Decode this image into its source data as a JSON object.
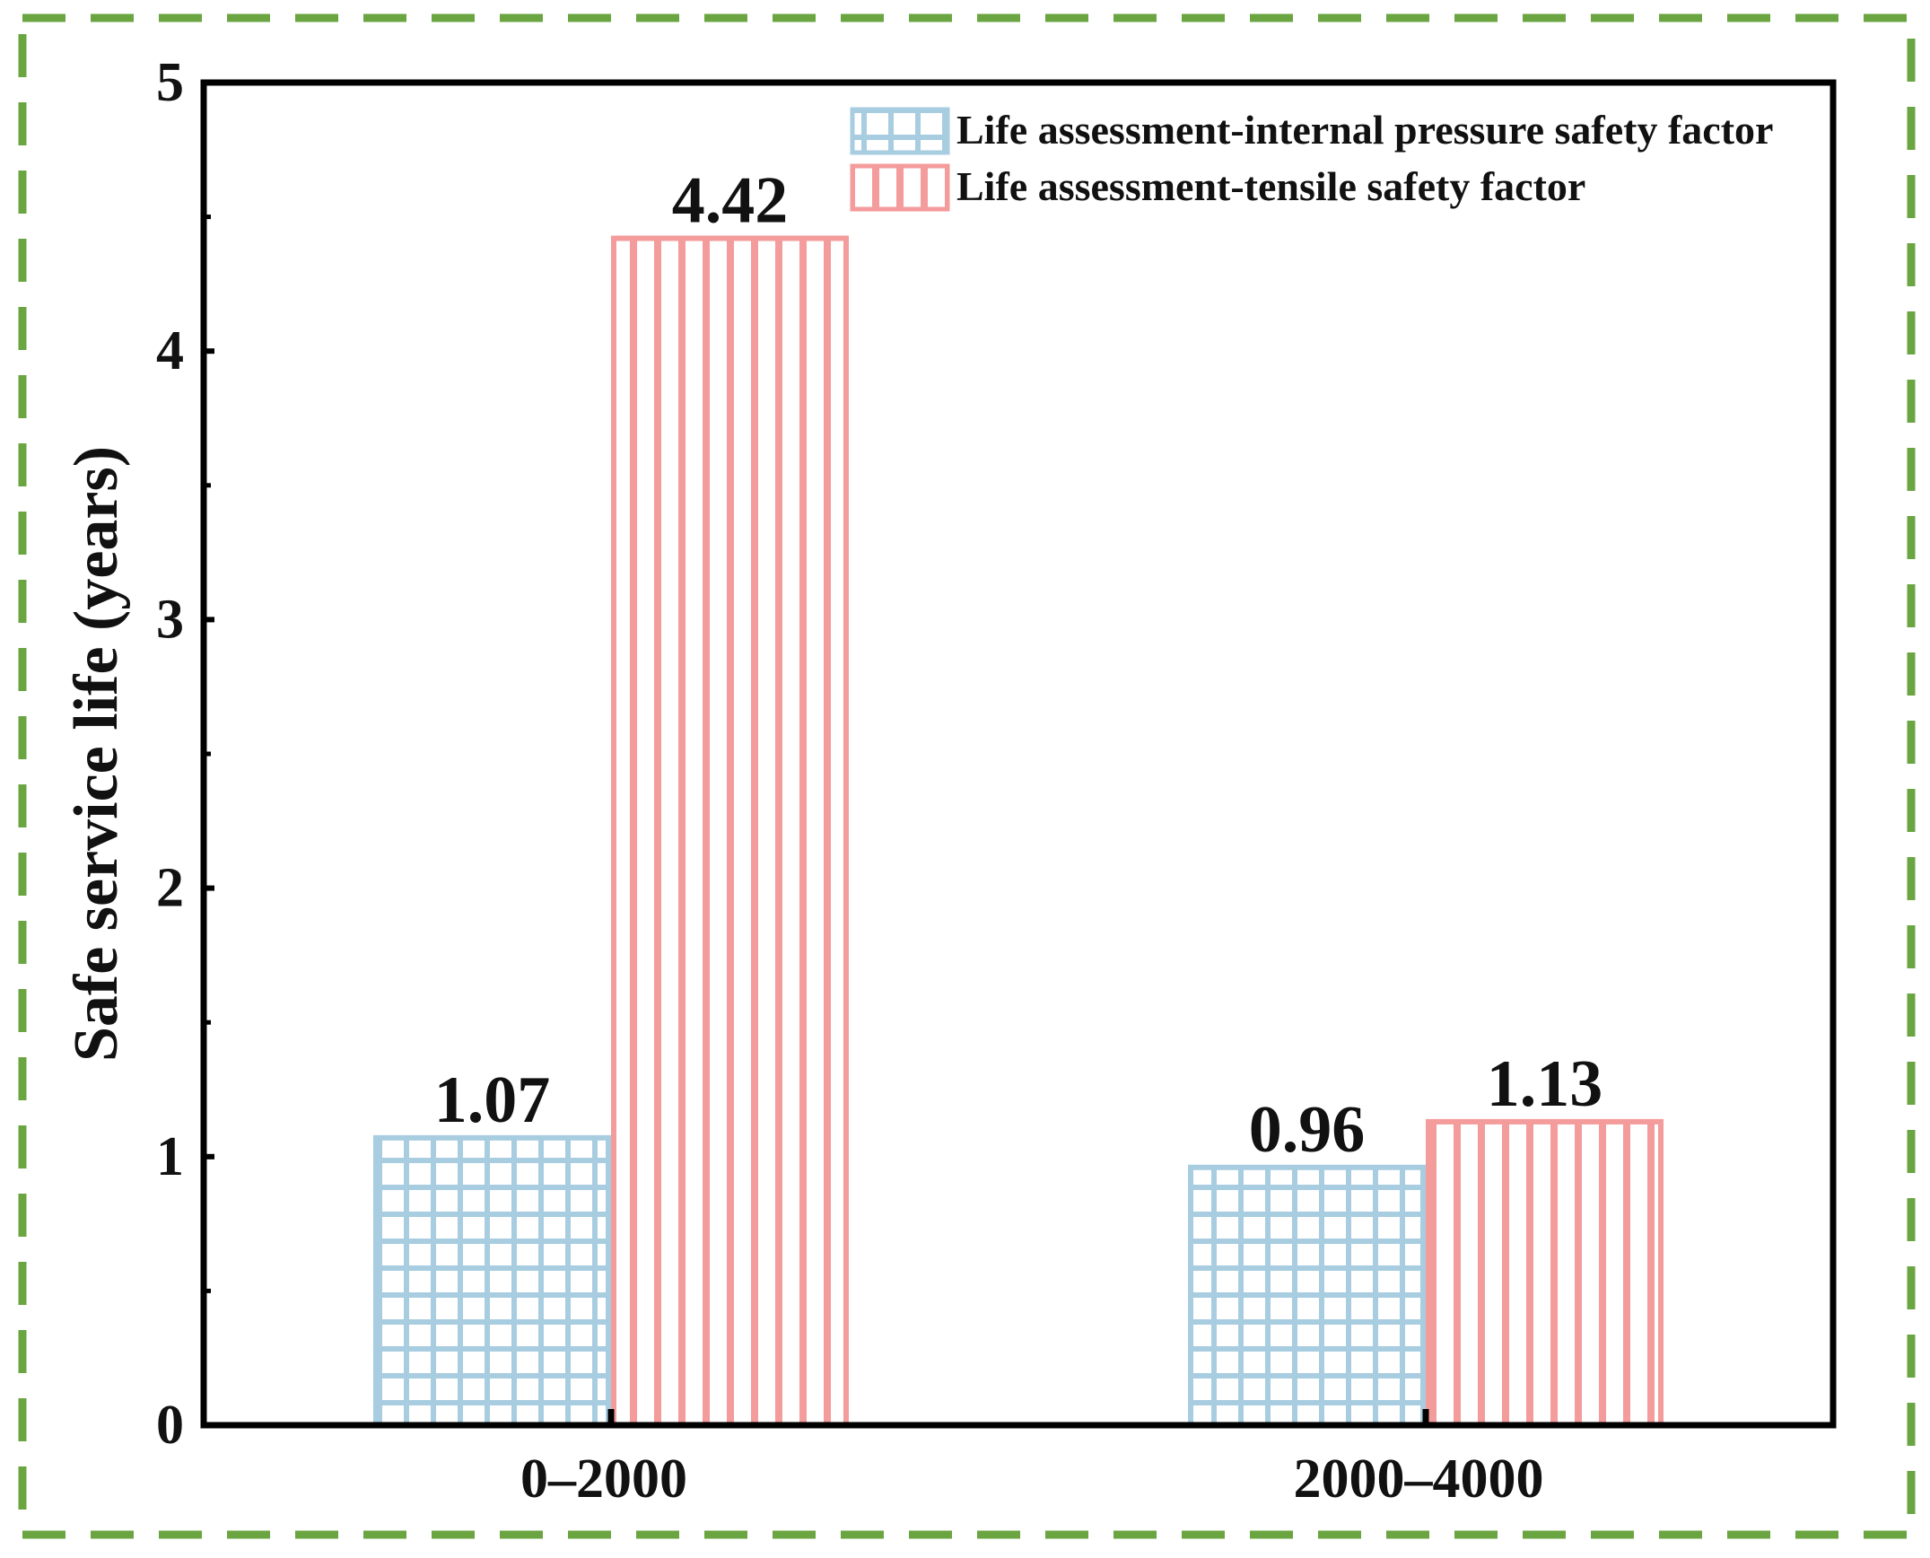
{
  "chart_data": {
    "type": "bar",
    "title": "",
    "xlabel": "",
    "ylabel": "Safe service life (years)",
    "categories": [
      "0–2000",
      "2000–4000"
    ],
    "series": [
      {
        "name": "Life assessment-internal pressure safety factor",
        "values": [
          1.07,
          0.96
        ],
        "labels": [
          "1.07",
          "0.96"
        ],
        "color": "#a8cde0",
        "pattern": "grid"
      },
      {
        "name": "Life assessment-tensile safety factor",
        "values": [
          4.42,
          1.13
        ],
        "labels": [
          "4.42",
          "1.13"
        ],
        "color": "#f49b9b",
        "pattern": "vertical-stripes"
      }
    ],
    "ylim": [
      0,
      5
    ],
    "yticks": [
      0,
      1,
      2,
      3,
      4,
      5
    ],
    "ytick_labels": [
      "0",
      "1",
      "2",
      "3",
      "4",
      "5"
    ],
    "grid": false,
    "legend_position": "top-right",
    "frame_color": "#6aa542",
    "frame_style": "dashed"
  }
}
